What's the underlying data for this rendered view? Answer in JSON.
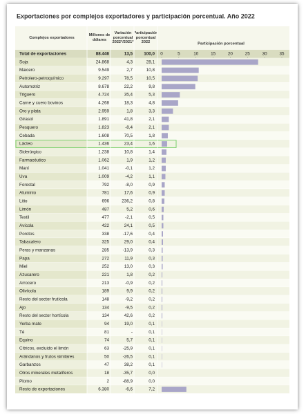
{
  "chart_data": {
    "type": "bar",
    "orientation": "horizontal",
    "title": "Exportaciones por complejos exportadores y participación porcentual. Año 2022",
    "category_header": "Complejos exportadores",
    "axis_title": "Participación porcentual",
    "xlim": [
      0,
      35
    ],
    "xticks": [
      0,
      5,
      10,
      15,
      20,
      25,
      30,
      35
    ],
    "highlight": "Lácteo",
    "bar_color": "#a9a6c8",
    "total": {
      "category": "Total de exportaciones",
      "values": [
        88446,
        13.5,
        100.0
      ],
      "value_labels": [
        "88.446",
        "13,5",
        "100,0"
      ]
    },
    "categories": [
      "Soja",
      "Maicero",
      "Petrolero-petroquímico",
      "Automotriz",
      "Triguero",
      "Carne y cuero bovinos",
      "Oro y plata",
      "Girasol",
      "Pesquero",
      "Cebada",
      "Lácteo",
      "Siderúrgico",
      "Farmacéutico",
      "Maní",
      "Uva",
      "Forestal",
      "Aluminio",
      "Litio",
      "Limón",
      "Textil",
      "Avícola",
      "Porotos",
      "Tabacalero",
      "Peras y manzanas",
      "Papa",
      "Miel",
      "Azucarero",
      "Arrocero",
      "Olivícola",
      "Resto del sector frutícola",
      "Ajo",
      "Resto del sector hortícola",
      "Yerba mate",
      "Té",
      "Equino",
      "Cítricos, excluido el limón",
      "Arándanos y frutos similares",
      "Garbanzos",
      "Otros minerales metalíferos",
      "Plomo",
      "Resto de exportaciones"
    ],
    "series": [
      {
        "name": "Millones de dólares",
        "values": [
          24868,
          9549,
          9297,
          8678,
          4724,
          4268,
          2959,
          1891,
          1823,
          1608,
          1436,
          1238,
          1062,
          1041,
          1009,
          792,
          781,
          696,
          487,
          477,
          422,
          338,
          325,
          285,
          272,
          252,
          221,
          213,
          189,
          148,
          134,
          134,
          94,
          81,
          74,
          63,
          50,
          47,
          18,
          2,
          6380
        ],
        "value_labels": [
          "24.868",
          "9.549",
          "9.297",
          "8.678",
          "4.724",
          "4.268",
          "2.959",
          "1.891",
          "1.823",
          "1.608",
          "1.436",
          "1.238",
          "1.062",
          "1.041",
          "1.009",
          "792",
          "781",
          "696",
          "487",
          "477",
          "422",
          "338",
          "325",
          "285",
          "272",
          "252",
          "221",
          "213",
          "189",
          "148",
          "134",
          "134",
          "94",
          "81",
          "74",
          "63",
          "50",
          "47",
          "18",
          "2",
          "6.380"
        ]
      },
      {
        "name": "Variación porcentual 2022*/2021*",
        "values": [
          4.3,
          2.7,
          78.5,
          22.2,
          35.4,
          18.3,
          1.8,
          41.8,
          -8.4,
          70.5,
          23.4,
          10.8,
          1.9,
          -0.1,
          -4.2,
          -8.0,
          17.6,
          236.2,
          5.2,
          -2.1,
          24.1,
          -17.6,
          29.0,
          -13.9,
          11.9,
          13.0,
          1.8,
          -0.9,
          9.9,
          -9.2,
          -9.5,
          42.6,
          19.0,
          null,
          5.7,
          -25.9,
          -26.5,
          38.2,
          -35.7,
          -88.9,
          -6.6
        ],
        "value_labels": [
          "4,3",
          "2,7",
          "78,5",
          "22,2",
          "35,4",
          "18,3",
          "1,8",
          "41,8",
          "-8,4",
          "70,5",
          "23,4",
          "10,8",
          "1,9",
          "-0,1",
          "-4,2",
          "-8,0",
          "17,6",
          "236,2",
          "5,2",
          "-2,1",
          "24,1",
          "-17,6",
          "29,0",
          "-13,9",
          "11,9",
          "13,0",
          "1,8",
          "-0,9",
          "9,9",
          "-9,2",
          "-9,5",
          "42,6",
          "19,0",
          "-",
          "5,7",
          "-25,9",
          "-26,5",
          "38,2",
          "-35,7",
          "-88,9",
          "-6,6"
        ]
      },
      {
        "name": "Participación porcentual 2022",
        "bars": true,
        "values": [
          28.1,
          10.8,
          10.5,
          9.8,
          5.3,
          4.8,
          3.3,
          2.1,
          2.1,
          1.8,
          1.6,
          1.4,
          1.2,
          1.2,
          1.1,
          0.9,
          0.9,
          0.8,
          0.6,
          0.5,
          0.5,
          0.4,
          0.4,
          0.3,
          0.3,
          0.3,
          0.2,
          0.2,
          0.2,
          0.2,
          0.2,
          0.2,
          0.1,
          0.1,
          0.1,
          0.1,
          0.1,
          0.1,
          0.0,
          0.0,
          7.2
        ],
        "value_labels": [
          "28,1",
          "10,8",
          "10,5",
          "9,8",
          "5,3",
          "4,8",
          "3,3",
          "2,1",
          "2,1",
          "1,8",
          "1,6",
          "1,4",
          "1,2",
          "1,2",
          "1,1",
          "0,9",
          "0,9",
          "0,8",
          "0,6",
          "0,5",
          "0,5",
          "0,4",
          "0,4",
          "0,3",
          "0,3",
          "0,3",
          "0,2",
          "0,2",
          "0,2",
          "0,2",
          "0,2",
          "0,2",
          "0,1",
          "0,1",
          "0,1",
          "0,1",
          "0,1",
          "0,1",
          "0,0",
          "0,0",
          "7,2"
        ]
      }
    ]
  }
}
